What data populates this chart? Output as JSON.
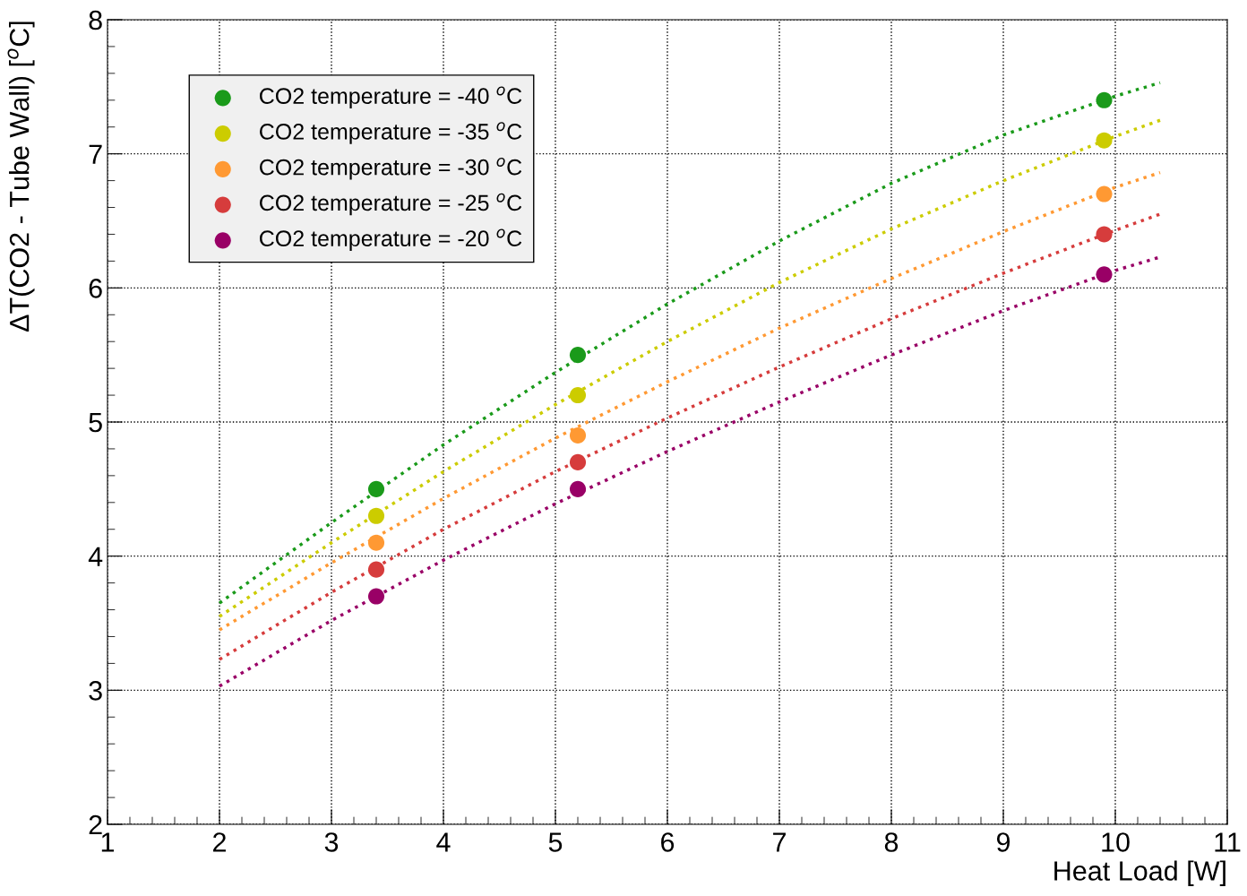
{
  "chart_data": {
    "type": "scatter",
    "xlabel": "Heat Load [W]",
    "ylabel": "ΔT(CO2 - Tube Wall) [$^{o}$C]",
    "xlim": [
      1,
      11
    ],
    "ylim": [
      2,
      8
    ],
    "xticks": [
      1,
      2,
      3,
      4,
      5,
      6,
      7,
      8,
      9,
      10,
      11
    ],
    "yticks": [
      2,
      3,
      4,
      5,
      6,
      7,
      8
    ],
    "grid": true,
    "legend": "top left",
    "marker": "circle",
    "series": [
      {
        "name": "CO2 temperature = -40 $^{o}$C",
        "color": "#1a9a1a",
        "x": [
          3.4,
          5.2,
          9.9
        ],
        "values": [
          4.5,
          5.5,
          7.4
        ]
      },
      {
        "name": "CO2 temperature = -35 $^{o}$C",
        "color": "#cccc00",
        "x": [
          3.4,
          5.2,
          9.9
        ],
        "values": [
          4.3,
          5.2,
          7.1
        ]
      },
      {
        "name": "CO2 temperature = -30 $^{o}$C",
        "color": "#ff9933",
        "x": [
          3.4,
          5.2,
          9.9
        ],
        "values": [
          4.1,
          4.9,
          6.7
        ]
      },
      {
        "name": "CO2 temperature = -25 $^{o}$C",
        "color": "#d63c3c",
        "x": [
          3.4,
          5.2,
          9.9
        ],
        "values": [
          3.9,
          4.7,
          6.4
        ]
      },
      {
        "name": "CO2 temperature = -20 $^{o}$C",
        "color": "#990066",
        "x": [
          3.4,
          5.2,
          9.9
        ],
        "values": [
          3.7,
          4.5,
          6.1
        ]
      },
      {
        "type": "line",
        "marker": "none",
        "line_style": "dotted",
        "color": "#1a9a1a",
        "x": [
          2,
          3,
          4,
          5,
          6,
          7,
          8,
          9,
          10,
          10.4
        ],
        "values": [
          3.65,
          4.25,
          4.83,
          5.37,
          5.88,
          6.35,
          6.78,
          7.14,
          7.43,
          7.53
        ]
      },
      {
        "type": "line",
        "marker": "none",
        "line_style": "dotted",
        "color": "#cccc00",
        "x": [
          2,
          3,
          4,
          5,
          6,
          7,
          8,
          9,
          10,
          10.4
        ],
        "values": [
          3.55,
          4.1,
          4.63,
          5.13,
          5.6,
          6.04,
          6.44,
          6.8,
          7.13,
          7.25
        ]
      },
      {
        "type": "line",
        "marker": "none",
        "line_style": "dotted",
        "color": "#ff9933",
        "x": [
          2,
          3,
          4,
          5,
          6,
          7,
          8,
          9,
          10,
          10.4
        ],
        "values": [
          3.45,
          3.95,
          4.43,
          4.88,
          5.3,
          5.7,
          6.07,
          6.42,
          6.75,
          6.86
        ]
      },
      {
        "type": "line",
        "marker": "none",
        "line_style": "dotted",
        "color": "#d63c3c",
        "x": [
          2,
          3,
          4,
          5,
          6,
          7,
          8,
          9,
          10,
          10.4
        ],
        "values": [
          3.23,
          3.73,
          4.2,
          4.63,
          5.03,
          5.41,
          5.77,
          6.11,
          6.43,
          6.55
        ]
      },
      {
        "type": "line",
        "marker": "none",
        "line_style": "dotted",
        "color": "#990066",
        "x": [
          2,
          3,
          4,
          5,
          6,
          7,
          8,
          9,
          10,
          10.4
        ],
        "values": [
          3.03,
          3.52,
          3.97,
          4.39,
          4.78,
          5.15,
          5.5,
          5.83,
          6.13,
          6.23
        ]
      }
    ]
  }
}
